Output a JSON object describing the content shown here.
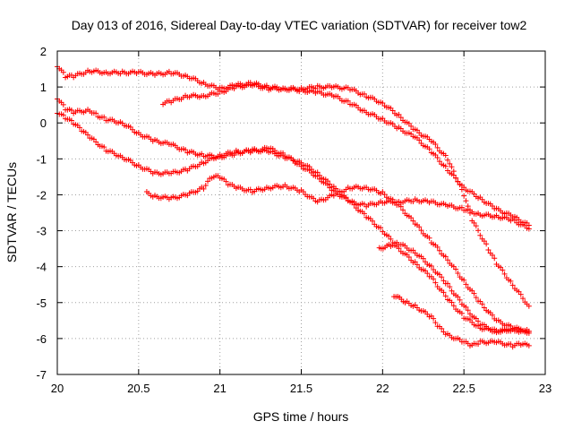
{
  "chart_data": {
    "type": "scatter",
    "title": "Day 013 of 2016, Sidereal Day-to-day VTEC variation (SDTVAR) for receiver tow2",
    "xlabel": "GPS time / hours",
    "ylabel": "SDTVAR / TECUs",
    "xlim": [
      20,
      23
    ],
    "ylim": [
      -7,
      2
    ],
    "x_ticks": [
      "20",
      "20.5",
      "21",
      "21.5",
      "22",
      "22.5",
      "23"
    ],
    "y_ticks": [
      "-7",
      "-6",
      "-5",
      "-4",
      "-3",
      "-2",
      "-1",
      "0",
      "1",
      "2"
    ],
    "grid": true,
    "marker": "plus",
    "color": "#ff0000",
    "series": [
      {
        "name": "s1",
        "points": [
          [
            20.0,
            1.6
          ],
          [
            20.05,
            1.3
          ],
          [
            20.1,
            1.3
          ],
          [
            20.2,
            1.45
          ],
          [
            20.3,
            1.4
          ],
          [
            20.4,
            1.4
          ],
          [
            20.5,
            1.4
          ],
          [
            20.6,
            1.35
          ],
          [
            20.7,
            1.4
          ],
          [
            20.8,
            1.3
          ],
          [
            20.9,
            1.1
          ],
          [
            21.0,
            0.95
          ],
          [
            21.1,
            1.05
          ],
          [
            21.2,
            1.1
          ],
          [
            21.3,
            1.0
          ],
          [
            21.4,
            0.95
          ],
          [
            21.5,
            0.9
          ],
          [
            21.6,
            0.85
          ],
          [
            21.7,
            0.75
          ],
          [
            21.8,
            0.55
          ],
          [
            21.9,
            0.3
          ],
          [
            22.0,
            0.1
          ],
          [
            22.1,
            -0.15
          ],
          [
            22.2,
            -0.4
          ],
          [
            22.3,
            -0.8
          ],
          [
            22.4,
            -1.3
          ],
          [
            22.5,
            -1.8
          ],
          [
            22.6,
            -2.1
          ],
          [
            22.7,
            -2.4
          ],
          [
            22.8,
            -2.6
          ],
          [
            22.9,
            -2.85
          ]
        ]
      },
      {
        "name": "s2",
        "points": [
          [
            20.65,
            0.55
          ],
          [
            20.7,
            0.6
          ],
          [
            20.8,
            0.75
          ],
          [
            20.9,
            0.75
          ],
          [
            21.0,
            0.85
          ],
          [
            21.1,
            1.0
          ],
          [
            21.2,
            1.05
          ],
          [
            21.3,
            0.95
          ],
          [
            21.4,
            0.95
          ],
          [
            21.5,
            0.95
          ],
          [
            21.6,
            1.0
          ],
          [
            21.7,
            1.0
          ],
          [
            21.8,
            0.95
          ],
          [
            21.9,
            0.75
          ],
          [
            22.0,
            0.55
          ],
          [
            22.1,
            0.2
          ],
          [
            22.2,
            -0.2
          ],
          [
            22.3,
            -0.5
          ],
          [
            22.4,
            -1.0
          ],
          [
            22.45,
            -1.5
          ],
          [
            22.5,
            -2.0
          ],
          [
            22.55,
            -2.7
          ],
          [
            22.65,
            -3.5
          ],
          [
            22.7,
            -3.9
          ],
          [
            22.8,
            -4.5
          ],
          [
            22.9,
            -5.1
          ]
        ]
      },
      {
        "name": "s3",
        "points": [
          [
            20.0,
            0.7
          ],
          [
            20.05,
            0.4
          ],
          [
            20.1,
            0.3
          ],
          [
            20.2,
            0.35
          ],
          [
            20.25,
            0.2
          ],
          [
            20.3,
            0.1
          ],
          [
            20.4,
            0.0
          ],
          [
            20.5,
            -0.3
          ],
          [
            20.6,
            -0.5
          ],
          [
            20.7,
            -0.6
          ],
          [
            20.8,
            -0.8
          ],
          [
            20.9,
            -0.9
          ],
          [
            21.0,
            -0.95
          ],
          [
            21.1,
            -0.85
          ],
          [
            21.2,
            -0.75
          ],
          [
            21.3,
            -0.8
          ],
          [
            21.4,
            -0.95
          ],
          [
            21.5,
            -1.1
          ],
          [
            21.6,
            -1.4
          ],
          [
            21.7,
            -1.8
          ],
          [
            21.8,
            -2.2
          ],
          [
            21.9,
            -2.6
          ],
          [
            22.0,
            -3.0
          ],
          [
            22.1,
            -3.5
          ],
          [
            22.2,
            -3.9
          ],
          [
            22.3,
            -4.3
          ],
          [
            22.4,
            -4.9
          ],
          [
            22.5,
            -5.4
          ],
          [
            22.6,
            -5.7
          ],
          [
            22.7,
            -5.8
          ],
          [
            22.8,
            -5.75
          ],
          [
            22.9,
            -5.85
          ]
        ]
      },
      {
        "name": "s4",
        "points": [
          [
            20.0,
            0.3
          ],
          [
            20.05,
            0.15
          ],
          [
            20.1,
            0.0
          ],
          [
            20.15,
            -0.2
          ],
          [
            20.2,
            -0.4
          ],
          [
            20.3,
            -0.75
          ],
          [
            20.4,
            -0.95
          ],
          [
            20.5,
            -1.2
          ],
          [
            20.6,
            -1.4
          ],
          [
            20.7,
            -1.4
          ],
          [
            20.8,
            -1.3
          ],
          [
            20.9,
            -1.1
          ],
          [
            21.0,
            -0.9
          ],
          [
            21.1,
            -0.8
          ],
          [
            21.2,
            -0.8
          ],
          [
            21.3,
            -0.7
          ],
          [
            21.4,
            -0.9
          ],
          [
            21.5,
            -1.2
          ],
          [
            21.6,
            -1.5
          ],
          [
            21.7,
            -1.9
          ],
          [
            21.8,
            -2.2
          ],
          [
            21.9,
            -2.3
          ],
          [
            22.0,
            -2.2
          ],
          [
            22.1,
            -2.2
          ],
          [
            22.2,
            -2.15
          ],
          [
            22.3,
            -2.2
          ],
          [
            22.4,
            -2.3
          ],
          [
            22.5,
            -2.4
          ],
          [
            22.6,
            -2.55
          ],
          [
            22.7,
            -2.6
          ],
          [
            22.8,
            -2.7
          ],
          [
            22.9,
            -2.95
          ]
        ]
      },
      {
        "name": "s5",
        "points": [
          [
            20.55,
            -1.95
          ],
          [
            20.6,
            -2.05
          ],
          [
            20.7,
            -2.1
          ],
          [
            20.8,
            -2.0
          ],
          [
            20.9,
            -1.8
          ],
          [
            20.95,
            -1.5
          ],
          [
            21.0,
            -1.5
          ],
          [
            21.05,
            -1.7
          ],
          [
            21.1,
            -1.8
          ],
          [
            21.2,
            -1.9
          ],
          [
            21.3,
            -1.8
          ],
          [
            21.4,
            -1.75
          ],
          [
            21.5,
            -1.9
          ],
          [
            21.6,
            -2.2
          ],
          [
            21.7,
            -2.0
          ],
          [
            21.8,
            -1.8
          ],
          [
            21.9,
            -1.8
          ],
          [
            22.0,
            -1.95
          ],
          [
            22.1,
            -2.3
          ],
          [
            22.2,
            -2.8
          ],
          [
            22.3,
            -3.3
          ],
          [
            22.4,
            -3.8
          ],
          [
            22.5,
            -4.4
          ],
          [
            22.6,
            -5.0
          ],
          [
            22.7,
            -5.5
          ],
          [
            22.8,
            -5.7
          ],
          [
            22.9,
            -5.8
          ]
        ]
      },
      {
        "name": "s6",
        "points": [
          [
            21.98,
            -3.5
          ],
          [
            22.05,
            -3.4
          ],
          [
            22.1,
            -3.35
          ],
          [
            22.2,
            -3.6
          ],
          [
            22.3,
            -4.0
          ],
          [
            22.4,
            -4.5
          ],
          [
            22.5,
            -5.1
          ],
          [
            22.6,
            -5.6
          ],
          [
            22.7,
            -5.8
          ],
          [
            22.8,
            -5.75
          ],
          [
            22.9,
            -5.8
          ]
        ]
      },
      {
        "name": "s7",
        "points": [
          [
            22.07,
            -4.8
          ],
          [
            22.15,
            -5.0
          ],
          [
            22.2,
            -5.1
          ],
          [
            22.3,
            -5.4
          ],
          [
            22.35,
            -5.7
          ],
          [
            22.4,
            -5.9
          ],
          [
            22.5,
            -6.1
          ],
          [
            22.55,
            -6.2
          ],
          [
            22.6,
            -6.1
          ],
          [
            22.7,
            -6.1
          ],
          [
            22.8,
            -6.2
          ],
          [
            22.85,
            -6.15
          ],
          [
            22.9,
            -6.2
          ]
        ]
      }
    ]
  }
}
